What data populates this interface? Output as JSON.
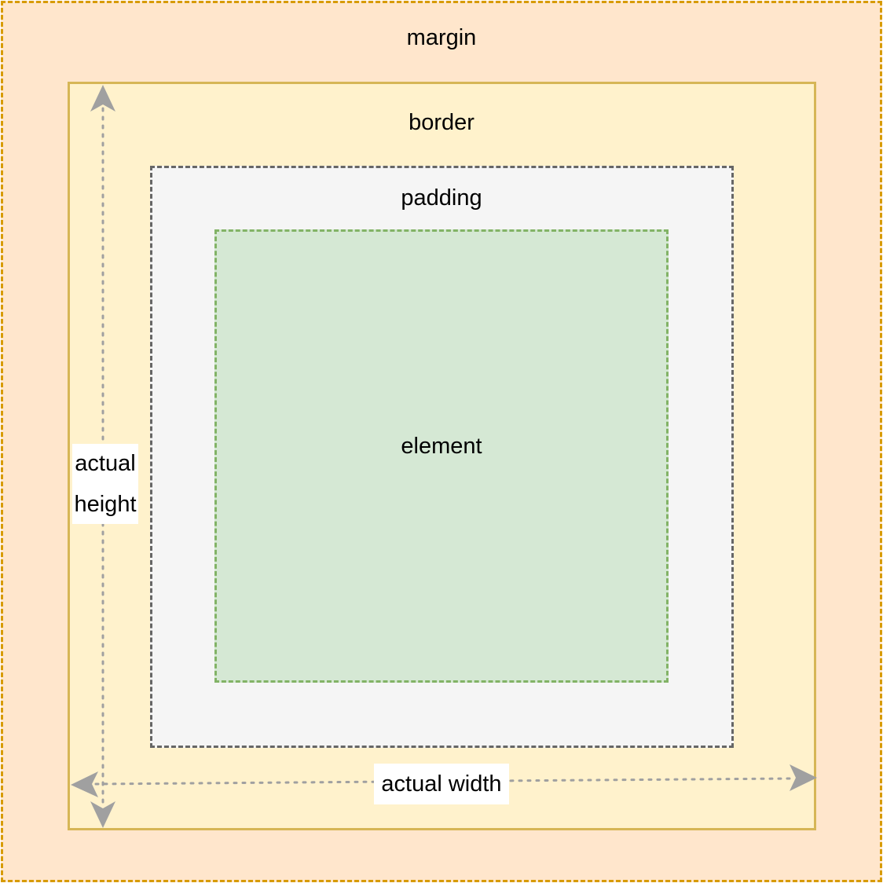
{
  "labels": {
    "margin": "margin",
    "border": "border",
    "padding": "padding",
    "element": "element",
    "height_line1": "actual",
    "height_line2": "height",
    "width": "actual width"
  },
  "colors": {
    "margin_fill": "#ffe6cc",
    "margin_stroke": "#d79b00",
    "border_fill": "#fff2cc",
    "border_stroke": "#d6b656",
    "padding_fill": "#f5f5f5",
    "padding_stroke": "#666666",
    "element_fill": "#d5e8d4",
    "element_stroke": "#82b366",
    "arrow": "#a0a0a0"
  }
}
